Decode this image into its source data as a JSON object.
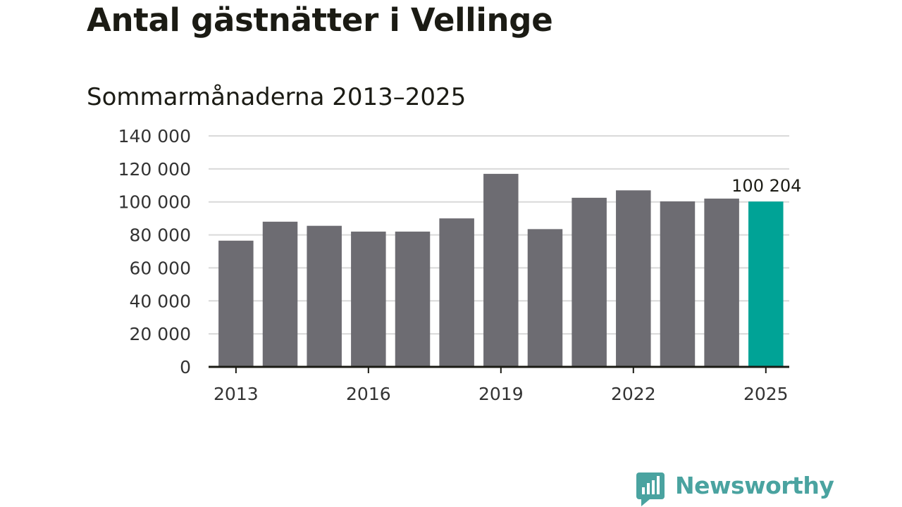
{
  "chart_data": {
    "type": "bar",
    "title": "Antal gästnätter i Vellinge",
    "subtitle": "Sommarmånaderna 2013–2025",
    "xlabel": "",
    "ylabel": "",
    "categories": [
      "2013",
      "2014",
      "2015",
      "2016",
      "2017",
      "2018",
      "2019",
      "2020",
      "2021",
      "2022",
      "2023",
      "2024",
      "2025"
    ],
    "values": [
      76500,
      88000,
      85500,
      82000,
      82000,
      90000,
      117000,
      83500,
      102500,
      107000,
      100300,
      102000,
      100204
    ],
    "highlight_index": 12,
    "highlight_label": "100 204",
    "ylim": [
      0,
      140000
    ],
    "yticks": [
      0,
      20000,
      40000,
      60000,
      80000,
      100000,
      120000,
      140000
    ],
    "ytick_labels": [
      "0",
      "20 000",
      "40 000",
      "60 000",
      "80 000",
      "100 000",
      "120 000",
      "140 000"
    ],
    "xtick_labels": [
      "2013",
      "2016",
      "2019",
      "2022",
      "2025"
    ],
    "grid": true,
    "colors": {
      "bar": "#6d6c72",
      "highlight": "#00a396",
      "grid": "#d9d9d9",
      "axis": "#1b1b14"
    }
  },
  "branding": {
    "logo_text": "Newsworthy",
    "logo_icon": "newsworthy-chart-bubble-icon",
    "logo_color": "#4aa3a0"
  }
}
